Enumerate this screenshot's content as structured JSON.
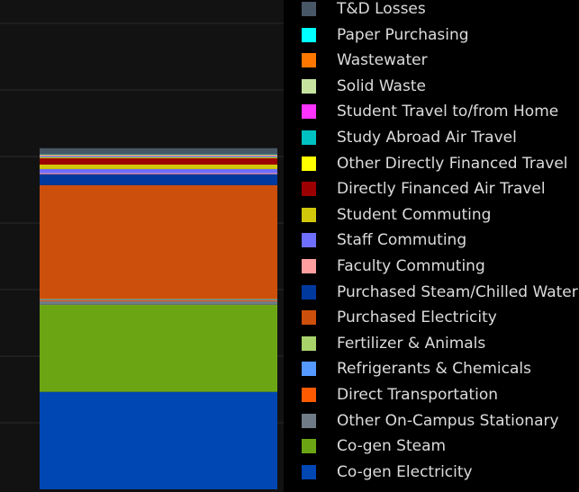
{
  "colors": {
    "page_background": "#121212",
    "legend_background": "#000000",
    "gridline": "#2a2a2a",
    "legend_text": "#dcdcdc"
  },
  "chart_data": {
    "type": "bar",
    "stacked": true,
    "categories": [
      ""
    ],
    "grid": true,
    "legend_position": "right",
    "series": [
      {
        "name": "Co-gen Electricity",
        "color": "#0047b3",
        "values": [
          28.5
        ]
      },
      {
        "name": "Co-gen Steam",
        "color": "#6ca514",
        "values": [
          25.5
        ]
      },
      {
        "name": "Other On-Campus Stationary",
        "color": "#6f7b87",
        "values": [
          1.0
        ]
      },
      {
        "name": "Direct Transportation",
        "color": "#ff5a00",
        "values": [
          0.3
        ]
      },
      {
        "name": "Refrigerants & Chemicals",
        "color": "#5599ff",
        "values": [
          0.2
        ]
      },
      {
        "name": "Fertilizer & Animals",
        "color": "#a8d36a",
        "values": [
          0.2
        ]
      },
      {
        "name": "Purchased Electricity",
        "color": "#cc4f0b",
        "values": [
          33.3
        ]
      },
      {
        "name": "Purchased Steam/Chilled Water",
        "color": "#00399e",
        "values": [
          3.2
        ]
      },
      {
        "name": "Faculty Commuting",
        "color": "#ff9e9e",
        "values": [
          0.3
        ]
      },
      {
        "name": "Staff Commuting",
        "color": "#6e6eff",
        "values": [
          1.2
        ]
      },
      {
        "name": "Student Commuting",
        "color": "#d1c70a",
        "values": [
          1.3
        ]
      },
      {
        "name": "Directly Financed Air Travel",
        "color": "#9c0000",
        "values": [
          1.9
        ]
      },
      {
        "name": "Other Directly Financed Travel",
        "color": "#ffff00",
        "values": [
          0.2
        ]
      },
      {
        "name": "Study Abroad Air Travel",
        "color": "#00c2c2",
        "values": [
          0.2
        ]
      },
      {
        "name": "Student Travel to/from Home",
        "color": "#ff33ff",
        "values": [
          0.2
        ]
      },
      {
        "name": "Solid Waste",
        "color": "#c6e4a0",
        "values": [
          0.3
        ]
      },
      {
        "name": "Wastewater",
        "color": "#ff7700",
        "values": [
          0.1
        ]
      },
      {
        "name": "Paper Purchasing",
        "color": "#00ffff",
        "values": [
          0.1
        ]
      },
      {
        "name": "T&D Losses",
        "color": "#485766",
        "values": [
          1.8
        ]
      }
    ]
  }
}
